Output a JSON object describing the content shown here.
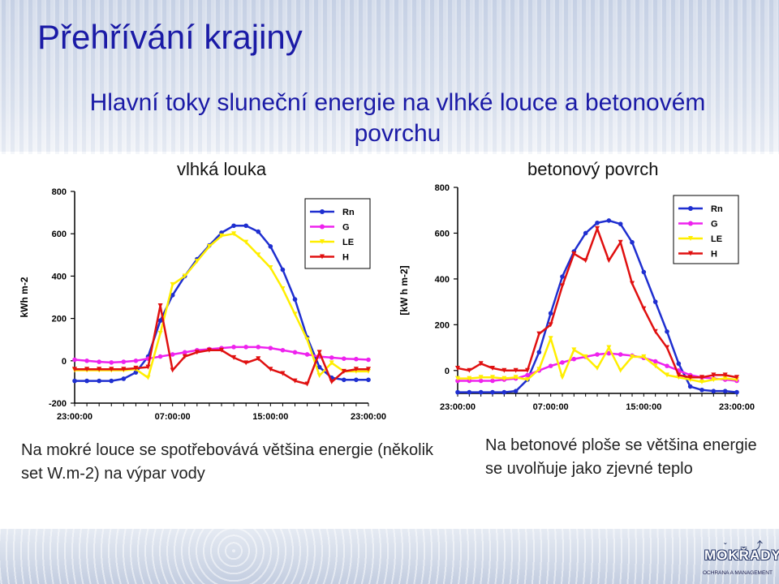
{
  "title": "Přehřívání krajiny",
  "subtitle": "Hlavní toky sluneční energie na vlhké louce a betonovém povrchu",
  "notes": {
    "left": "Na mokré louce se spotřebovává většina energie (několik set W.m-2) na výpar vody",
    "right": "Na betonové ploše se většina energie se uvolňuje jako zjevné teplo"
  },
  "logo": {
    "name": "MOKŘADY",
    "caron": "ˇ",
    "tagline": "OCHRANA A MANAGEMENT",
    "bird_icon": "heron-icon"
  },
  "colors": {
    "Rn": "#1f2fd0",
    "G": "#ee22ee",
    "LE": "#ffee00",
    "H": "#e01010",
    "title": "#1a1aa6"
  },
  "chart_data": [
    {
      "type": "line",
      "title": "vlhká louka",
      "ylabel": "kWh m-2",
      "ylim": [
        -200,
        800
      ],
      "yticks": [
        "800",
        "600",
        "400",
        "200",
        "0",
        "-200"
      ],
      "xticks": [
        "23:00:00",
        "07:00:00",
        "15:00:00",
        "23:00:00"
      ],
      "x": [
        0,
        1,
        2,
        3,
        4,
        5,
        6,
        7,
        8,
        9,
        10,
        11,
        12,
        13,
        14,
        15,
        16,
        17,
        18,
        19,
        20,
        21,
        22,
        23,
        24
      ],
      "legend_position": "top-right",
      "series": [
        {
          "name": "Rn",
          "color": "#1f2fd0",
          "values": [
            -95,
            -95,
            -95,
            -95,
            -85,
            -55,
            20,
            190,
            310,
            400,
            480,
            545,
            605,
            638,
            638,
            610,
            540,
            430,
            290,
            110,
            -30,
            -80,
            -90,
            -90,
            -90
          ]
        },
        {
          "name": "G",
          "color": "#ee22ee",
          "values": [
            5,
            0,
            -5,
            -8,
            -5,
            0,
            10,
            20,
            30,
            40,
            50,
            55,
            60,
            65,
            65,
            65,
            60,
            50,
            40,
            30,
            20,
            15,
            10,
            8,
            5
          ]
        },
        {
          "name": "LE",
          "color": "#ffee00",
          "values": [
            -45,
            -45,
            -45,
            -45,
            -45,
            -40,
            -80,
            130,
            360,
            400,
            470,
            540,
            590,
            600,
            560,
            500,
            440,
            340,
            220,
            100,
            -70,
            -10,
            -50,
            -50,
            -50
          ]
        },
        {
          "name": "H",
          "color": "#e01010",
          "values": [
            -40,
            -40,
            -40,
            -40,
            -40,
            -35,
            -30,
            260,
            -45,
            20,
            40,
            50,
            50,
            15,
            -10,
            10,
            -40,
            -60,
            -95,
            -110,
            40,
            -100,
            -50,
            -40,
            -40
          ]
        }
      ]
    },
    {
      "type": "line",
      "title": "betonový povrch",
      "ylabel": "[kW h m-2]",
      "ylim": [
        -100,
        800
      ],
      "yticks": [
        "800",
        "600",
        "400",
        "200",
        "0"
      ],
      "xticks": [
        "23:00:00",
        "07:00:00",
        "15:00:00",
        "23:00:00"
      ],
      "x": [
        0,
        1,
        2,
        3,
        4,
        5,
        6,
        7,
        8,
        9,
        10,
        11,
        12,
        13,
        14,
        15,
        16,
        17,
        18,
        19,
        20,
        21,
        22,
        23,
        24
      ],
      "legend_position": "top-right",
      "series": [
        {
          "name": "Rn",
          "color": "#1f2fd0",
          "values": [
            -95,
            -95,
            -95,
            -95,
            -95,
            -90,
            -40,
            80,
            250,
            410,
            520,
            600,
            645,
            655,
            640,
            560,
            430,
            300,
            170,
            30,
            -70,
            -85,
            -90,
            -90,
            -95
          ]
        },
        {
          "name": "G",
          "color": "#ee22ee",
          "values": [
            -45,
            -45,
            -45,
            -45,
            -40,
            -35,
            -20,
            0,
            20,
            35,
            50,
            60,
            70,
            75,
            70,
            65,
            55,
            40,
            20,
            0,
            -20,
            -30,
            -35,
            -40,
            -45
          ]
        },
        {
          "name": "LE",
          "color": "#ffee00",
          "values": [
            -35,
            -35,
            -30,
            -30,
            -35,
            -30,
            -40,
            5,
            140,
            -30,
            90,
            60,
            10,
            100,
            0,
            60,
            60,
            20,
            -20,
            -30,
            -40,
            -50,
            -40,
            -35,
            -40
          ]
        },
        {
          "name": "H",
          "color": "#e01010",
          "values": [
            10,
            0,
            30,
            10,
            0,
            0,
            0,
            160,
            200,
            370,
            510,
            480,
            620,
            480,
            560,
            380,
            270,
            170,
            100,
            -20,
            -30,
            -30,
            -20,
            -20,
            -30
          ]
        }
      ]
    }
  ]
}
